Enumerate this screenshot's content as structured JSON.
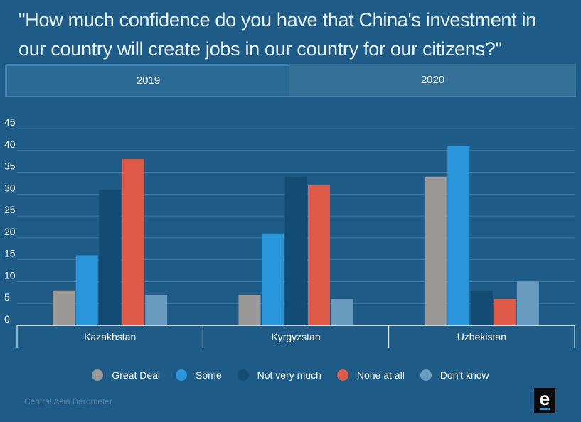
{
  "title": "\"How much confidence do you have that China's investment in our country will create jobs in our country for our citizens?\"",
  "tabs": [
    {
      "label": "2019",
      "active": true
    },
    {
      "label": "2020",
      "active": false
    }
  ],
  "legend": [
    {
      "label": "Great Deal",
      "color": "#9b9898"
    },
    {
      "label": "Some",
      "color": "#2a96dc"
    },
    {
      "label": "Not very much",
      "color": "#124c74"
    },
    {
      "label": "None at all",
      "color": "#e05a48"
    },
    {
      "label": "Don't know",
      "color": "#6a9cc0"
    }
  ],
  "source": "Central Asia Barometer",
  "logo_letter": "e",
  "chart_data": {
    "type": "bar",
    "categories": [
      "Kazakhstan",
      "Kyrgyzstan",
      "Uzbekistan"
    ],
    "series": [
      {
        "name": "Great Deal",
        "values": [
          8,
          7,
          34
        ],
        "color": "#9b9898"
      },
      {
        "name": "Some",
        "values": [
          16,
          21,
          41
        ],
        "color": "#2a96dc"
      },
      {
        "name": "Not very much",
        "values": [
          31,
          34,
          8
        ],
        "color": "#124c74"
      },
      {
        "name": "None at all",
        "values": [
          38,
          32,
          6
        ],
        "color": "#e05a48"
      },
      {
        "name": "Don't know",
        "values": [
          7,
          6,
          10
        ],
        "color": "#6a9cc0"
      }
    ],
    "yticks": [
      "0",
      "5",
      "10",
      "15",
      "20",
      "25",
      "30",
      "35",
      "40",
      "45"
    ],
    "ylim": [
      0,
      45
    ],
    "grid": true,
    "legend_position": "bottom"
  }
}
